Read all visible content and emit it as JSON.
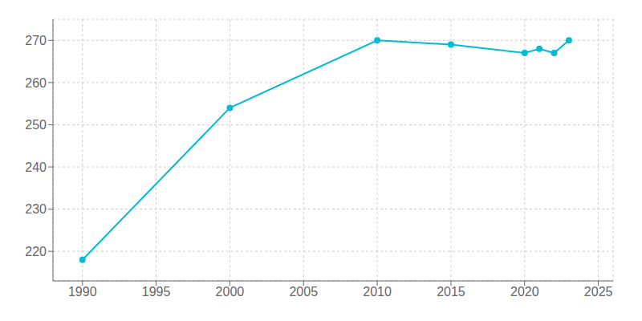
{
  "chart_data": {
    "type": "line",
    "x": [
      1990,
      2000,
      2010,
      2015,
      2020,
      2021,
      2022,
      2023
    ],
    "values": [
      218,
      254,
      270,
      269,
      267,
      268,
      267,
      270
    ],
    "color": "#00BCD4",
    "marker": "circle",
    "xlim": [
      1988,
      2026
    ],
    "ylim": [
      213,
      275
    ],
    "xticks": [
      1990,
      1995,
      2000,
      2005,
      2010,
      2015,
      2020,
      2025
    ],
    "yticks": [
      220,
      230,
      240,
      250,
      260,
      270
    ],
    "grid": true
  }
}
